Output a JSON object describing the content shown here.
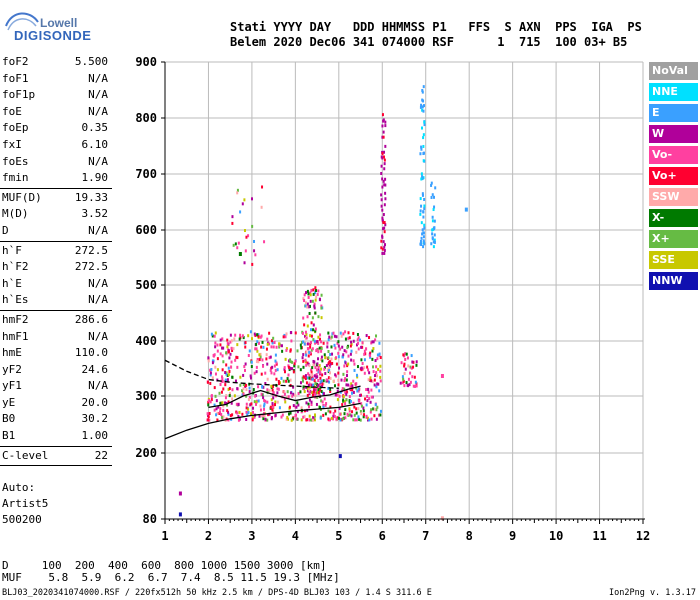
{
  "logo": {
    "line1": "Lowell",
    "line2": "DIGISONDE"
  },
  "header": {
    "line1": "Stati YYYY DAY   DDD HHMMSS P1   FFS  S AXN  PPS  IGA  PS",
    "line2": "Belem 2020 Dec06 341 074000 RSF      1  715  100 03+ B5"
  },
  "params": [
    {
      "name": "foF2",
      "value": "5.500"
    },
    {
      "name": "foF1",
      "value": "N/A"
    },
    {
      "name": "foF1p",
      "value": "N/A"
    },
    {
      "name": "foE",
      "value": "N/A"
    },
    {
      "name": "foEp",
      "value": "0.35"
    },
    {
      "name": "fxI",
      "value": "6.10"
    },
    {
      "name": "foEs",
      "value": "N/A"
    },
    {
      "name": "fmin",
      "value": "1.90"
    },
    {
      "sep": true
    },
    {
      "name": "MUF(D)",
      "value": "19.33"
    },
    {
      "name": "M(D)",
      "value": "3.52"
    },
    {
      "name": "D",
      "value": "N/A"
    },
    {
      "sep": true
    },
    {
      "name": "h`F",
      "value": "272.5"
    },
    {
      "name": "h`F2",
      "value": "272.5"
    },
    {
      "name": "h`E",
      "value": "N/A"
    },
    {
      "name": "h`Es",
      "value": "N/A"
    },
    {
      "sep": true
    },
    {
      "name": "hmF2",
      "value": "286.6"
    },
    {
      "name": "hmF1",
      "value": "N/A"
    },
    {
      "name": "hmE",
      "value": "110.0"
    },
    {
      "name": "yF2",
      "value": "24.6"
    },
    {
      "name": "yF1",
      "value": "N/A"
    },
    {
      "name": "yE",
      "value": "20.0"
    },
    {
      "name": "B0",
      "value": "30.2"
    },
    {
      "name": "B1",
      "value": "1.00"
    },
    {
      "sep": true
    },
    {
      "name": "C-level",
      "value": "22"
    },
    {
      "sep": true
    }
  ],
  "auto": {
    "line1": "Auto:",
    "line2": "Artist5",
    "line3": "500200"
  },
  "legend": [
    {
      "label": "NoVal",
      "color": "#a0a0a0"
    },
    {
      "label": "NNE",
      "color": "#00e0ff"
    },
    {
      "label": "E",
      "color": "#3aa0ff"
    },
    {
      "label": "W",
      "color": "#b0009a"
    },
    {
      "label": "Vo-",
      "color": "#ff40a0"
    },
    {
      "label": "Vo+",
      "color": "#ff0030"
    },
    {
      "label": "SSW",
      "color": "#ffaaaa"
    },
    {
      "label": "X-",
      "color": "#007a00"
    },
    {
      "label": "X+",
      "color": "#66bb44"
    },
    {
      "label": "SSE",
      "color": "#c8c800"
    },
    {
      "label": "NNW",
      "color": "#1010b0"
    }
  ],
  "bottom": {
    "row1": "D     100  200  400  600  800 1000 1500 3000 [km]",
    "row2": "MUF    5.8  5.9  6.2  6.7  7.4  8.5 11.5 19.3 [MHz]"
  },
  "footer": "BLJ03_2020341074000.RSF / 220fx512h 50 kHz 2.5 km / DPS-4D BLJ03 103 / 1.4 S 311.6 E",
  "version": "Ion2Png v. 1.3.17",
  "chart_data": {
    "type": "scatter",
    "xlim": [
      1,
      12
    ],
    "ylim": [
      80,
      900
    ],
    "x_ticks": [
      1,
      2,
      3,
      4,
      5,
      6,
      7,
      8,
      9,
      10,
      11,
      12
    ],
    "x_tick_labels": [
      "1",
      "2",
      "3",
      "4",
      "5",
      "6",
      "7",
      "8",
      "9",
      "10",
      "11",
      "12"
    ],
    "y_tick_labels": [
      "80",
      "200",
      "300",
      "400",
      "500",
      "600",
      "700",
      "800",
      "900"
    ],
    "y_ticks": [
      80,
      200,
      300,
      400,
      500,
      600,
      700,
      800,
      900
    ],
    "grid": true,
    "profile_line": {
      "x": [
        1.0,
        1.5,
        2.0,
        2.5,
        3.0,
        3.5,
        4.0,
        4.5,
        5.0,
        5.5
      ],
      "y": [
        225,
        240,
        252,
        260,
        266,
        270,
        274,
        277,
        280,
        287
      ]
    },
    "trace_line": {
      "x": [
        2.0,
        2.4,
        2.8,
        3.2,
        3.6,
        4.0,
        4.4,
        4.8,
        5.2,
        5.5
      ],
      "y": [
        280,
        285,
        300,
        310,
        300,
        292,
        298,
        302,
        312,
        318
      ]
    },
    "dashed_line": {
      "x": [
        1.0,
        1.5,
        2.0,
        2.5,
        3.0,
        3.5,
        4.0,
        4.5,
        5.0
      ],
      "y": [
        365,
        345,
        330,
        325,
        322,
        320,
        318,
        316,
        314
      ]
    },
    "echo_clusters": [
      {
        "x0": 1.95,
        "x1": 5.95,
        "ymin": 260,
        "ymax": 420,
        "n": 900
      },
      {
        "x0": 4.15,
        "x1": 4.6,
        "ymin": 300,
        "ymax": 500,
        "n": 160
      },
      {
        "x0": 2.5,
        "x1": 3.3,
        "ymin": 540,
        "ymax": 680,
        "n": 25
      },
      {
        "x0": 5.95,
        "x1": 6.05,
        "ymin": 560,
        "ymax": 810,
        "n": 55
      },
      {
        "x0": 6.85,
        "x1": 6.95,
        "ymin": 570,
        "ymax": 860,
        "n": 60
      },
      {
        "x0": 7.1,
        "x1": 7.2,
        "ymin": 570,
        "ymax": 690,
        "n": 25
      },
      {
        "x0": 6.4,
        "x1": 6.8,
        "ymin": 320,
        "ymax": 380,
        "n": 40
      }
    ]
  }
}
